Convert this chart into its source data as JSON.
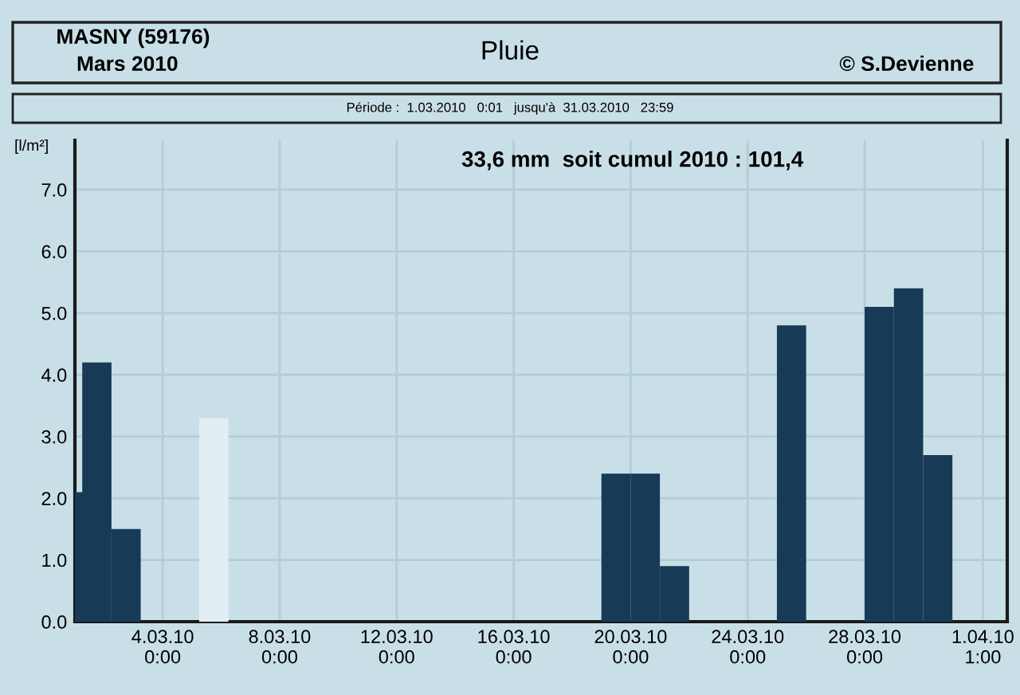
{
  "chart_data": {
    "type": "bar",
    "title": "Pluie",
    "ylabel": "[l/m²]",
    "annotations": [
      "MASNY (59176)",
      "Mars 2010",
      "© S.Devienne",
      "Période :  1.03.2010   0:01   jusqu'à  31.03.2010   23:59",
      "33,6 mm  soit cumul 2010 : 101,4"
    ],
    "series": [
      {
        "color": "#173a57",
        "x": [
          "2010-03-01T03:00",
          "2010-03-01T18:00",
          "2010-03-02T18:00",
          "2010-03-19T12:00",
          "2010-03-20T12:00",
          "2010-03-21T12:00",
          "2010-03-25T12:00",
          "2010-03-28T12:00",
          "2010-03-29T12:00",
          "2010-03-30T12:00"
        ],
        "values": [
          2.1,
          4.2,
          1.5,
          2.4,
          2.4,
          0.9,
          4.8,
          5.1,
          5.4,
          2.7
        ]
      },
      {
        "color": "#e2eef3",
        "x": [
          "2010-03-05T18:00"
        ],
        "values": [
          3.3
        ]
      }
    ],
    "xlim": [
      "2010-03-01T00:00",
      "2010-04-01T21:00"
    ],
    "xticks": [
      {
        "value": "2010-03-04",
        "label": "4.03.10\n0:00"
      },
      {
        "value": "2010-03-08",
        "label": "8.03.10\n0:00"
      },
      {
        "value": "2010-03-12",
        "label": "12.03.10\n0:00"
      },
      {
        "value": "2010-03-16",
        "label": "16.03.10\n0:00"
      },
      {
        "value": "2010-03-20",
        "label": "20.03.10\n0:00"
      },
      {
        "value": "2010-03-24",
        "label": "24.03.10\n0:00"
      },
      {
        "value": "2010-03-28",
        "label": "28.03.10\n0:00"
      },
      {
        "value": "2010-04-01T01:00",
        "label": "1.04.10\n1:00"
      }
    ],
    "ylim": [
      0,
      7.8
    ],
    "yticks": [
      {
        "value": 0,
        "label": "0.0"
      },
      {
        "value": 1,
        "label": "1.0"
      },
      {
        "value": 2,
        "label": "2.0"
      },
      {
        "value": 3,
        "label": "3.0"
      },
      {
        "value": 4,
        "label": "4.0"
      },
      {
        "value": 5,
        "label": "5.0"
      },
      {
        "value": 6,
        "label": "6.0"
      },
      {
        "value": 7,
        "label": "7.0"
      }
    ],
    "grid": true,
    "legend": false
  }
}
